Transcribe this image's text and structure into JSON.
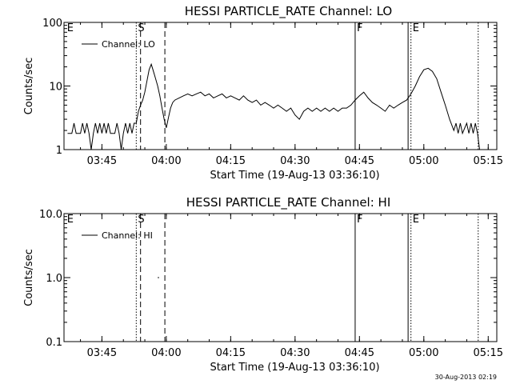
{
  "chart_data": [
    {
      "type": "line",
      "title": "HESSI PARTICLE_RATE Channel: LO",
      "xlabel": "Start Time (19-Aug-13 03:36:10)",
      "ylabel": "Counts/sec",
      "yscale": "log",
      "ylim": [
        1,
        100
      ],
      "xlim": [
        "03:36:10",
        "05:17:00"
      ],
      "x_ticks": [
        "03:45",
        "04:00",
        "04:15",
        "04:30",
        "04:45",
        "05:00",
        "05:15"
      ],
      "y_ticks": [
        "1",
        "10",
        "100"
      ],
      "legend": "top-left",
      "series": [
        {
          "name": "Channel: LO",
          "points": [
            [
              "03:37:00",
              1.8
            ],
            [
              "03:38:00",
              1.8
            ],
            [
              "03:38:30",
              2.6
            ],
            [
              "03:39:00",
              1.8
            ],
            [
              "03:40:00",
              1.8
            ],
            [
              "03:40:30",
              2.6
            ],
            [
              "03:41:00",
              1.8
            ],
            [
              "03:41:30",
              2.6
            ],
            [
              "03:42:00",
              1.8
            ],
            [
              "03:42:30",
              1.0
            ],
            [
              "03:43:00",
              1.8
            ],
            [
              "03:43:30",
              2.6
            ],
            [
              "03:44:00",
              1.8
            ],
            [
              "03:44:30",
              2.6
            ],
            [
              "03:45:00",
              1.8
            ],
            [
              "03:45:30",
              2.6
            ],
            [
              "03:46:00",
              1.8
            ],
            [
              "03:46:30",
              2.6
            ],
            [
              "03:47:00",
              1.8
            ],
            [
              "03:48:00",
              1.8
            ],
            [
              "03:48:30",
              2.6
            ],
            [
              "03:49:00",
              1.8
            ],
            [
              "03:49:30",
              1.0
            ],
            [
              "03:50:00",
              1.8
            ],
            [
              "03:50:30",
              2.6
            ],
            [
              "03:51:00",
              1.8
            ],
            [
              "03:51:30",
              2.6
            ],
            [
              "03:52:00",
              1.8
            ],
            [
              "03:52:30",
              2.6
            ],
            [
              "03:53:00",
              2.6
            ],
            [
              "03:53:30",
              4.0
            ],
            [
              "03:54:00",
              5.0
            ],
            [
              "03:54:30",
              6.0
            ],
            [
              "03:55:00",
              8.0
            ],
            [
              "03:55:30",
              12.0
            ],
            [
              "03:56:00",
              18.0
            ],
            [
              "03:56:30",
              22.0
            ],
            [
              "03:57:00",
              17.0
            ],
            [
              "03:57:30",
              13.0
            ],
            [
              "03:58:00",
              10.0
            ],
            [
              "03:58:30",
              7.0
            ],
            [
              "03:59:00",
              4.5
            ],
            [
              "03:59:30",
              3.0
            ],
            [
              "04:00:00",
              2.2
            ],
            [
              "04:00:30",
              3.2
            ],
            [
              "04:01:00",
              4.5
            ],
            [
              "04:01:30",
              5.5
            ],
            [
              "04:02:00",
              6.0
            ],
            [
              "04:03:00",
              6.5
            ],
            [
              "04:04:00",
              7.0
            ],
            [
              "04:05:00",
              7.5
            ],
            [
              "04:06:00",
              7.0
            ],
            [
              "04:07:00",
              7.5
            ],
            [
              "04:08:00",
              8.0
            ],
            [
              "04:09:00",
              7.0
            ],
            [
              "04:10:00",
              7.5
            ],
            [
              "04:11:00",
              6.5
            ],
            [
              "04:12:00",
              7.0
            ],
            [
              "04:13:00",
              7.5
            ],
            [
              "04:14:00",
              6.5
            ],
            [
              "04:15:00",
              7.0
            ],
            [
              "04:16:00",
              6.5
            ],
            [
              "04:17:00",
              6.0
            ],
            [
              "04:18:00",
              7.0
            ],
            [
              "04:19:00",
              6.0
            ],
            [
              "04:20:00",
              5.5
            ],
            [
              "04:21:00",
              6.0
            ],
            [
              "04:22:00",
              5.0
            ],
            [
              "04:23:00",
              5.5
            ],
            [
              "04:24:00",
              5.0
            ],
            [
              "04:25:00",
              4.5
            ],
            [
              "04:26:00",
              5.0
            ],
            [
              "04:27:00",
              4.5
            ],
            [
              "04:28:00",
              4.0
            ],
            [
              "04:29:00",
              4.5
            ],
            [
              "04:30:00",
              3.5
            ],
            [
              "04:31:00",
              3.0
            ],
            [
              "04:32:00",
              4.0
            ],
            [
              "04:33:00",
              4.5
            ],
            [
              "04:34:00",
              4.0
            ],
            [
              "04:35:00",
              4.5
            ],
            [
              "04:36:00",
              4.0
            ],
            [
              "04:37:00",
              4.5
            ],
            [
              "04:38:00",
              4.0
            ],
            [
              "04:39:00",
              4.5
            ],
            [
              "04:40:00",
              4.0
            ],
            [
              "04:41:00",
              4.5
            ],
            [
              "04:42:00",
              4.5
            ],
            [
              "04:43:00",
              5.0
            ],
            [
              "04:44:00",
              6.0
            ],
            [
              "04:45:00",
              7.0
            ],
            [
              "04:46:00",
              8.0
            ],
            [
              "04:47:00",
              6.5
            ],
            [
              "04:48:00",
              5.5
            ],
            [
              "04:49:00",
              5.0
            ],
            [
              "04:50:00",
              4.5
            ],
            [
              "04:51:00",
              4.0
            ],
            [
              "04:52:00",
              5.0
            ],
            [
              "04:53:00",
              4.5
            ],
            [
              "04:54:00",
              5.0
            ],
            [
              "04:55:00",
              5.5
            ],
            [
              "04:56:00",
              6.0
            ],
            [
              "04:57:00",
              7.5
            ],
            [
              "04:58:00",
              10.0
            ],
            [
              "04:59:00",
              14.0
            ],
            [
              "05:00:00",
              18.0
            ],
            [
              "05:01:00",
              19.0
            ],
            [
              "05:02:00",
              17.0
            ],
            [
              "05:03:00",
              13.0
            ],
            [
              "05:04:00",
              8.0
            ],
            [
              "05:05:00",
              5.0
            ],
            [
              "05:06:00",
              3.0
            ],
            [
              "05:07:00",
              2.0
            ],
            [
              "05:07:30",
              2.6
            ],
            [
              "05:08:00",
              1.8
            ],
            [
              "05:08:30",
              2.6
            ],
            [
              "05:09:00",
              1.8
            ],
            [
              "05:10:00",
              2.6
            ],
            [
              "05:10:30",
              1.8
            ],
            [
              "05:11:00",
              2.6
            ],
            [
              "05:11:30",
              1.8
            ],
            [
              "05:12:00",
              2.6
            ],
            [
              "05:12:30",
              1.8
            ],
            [
              "05:13:00",
              1.0
            ]
          ]
        }
      ],
      "markers": [
        {
          "label": "E",
          "time": "03:36:30",
          "style": "none"
        },
        {
          "label": "S",
          "time": "03:53:00",
          "style": "dotted"
        },
        {
          "label": "",
          "time": "03:54:00",
          "style": "dashed"
        },
        {
          "label": "",
          "time": "03:59:40",
          "style": "dashed"
        },
        {
          "label": "F",
          "time": "04:44:00",
          "style": "solid"
        },
        {
          "label": "",
          "time": "04:56:20",
          "style": "solid"
        },
        {
          "label": "E",
          "time": "04:57:00",
          "style": "dotted"
        },
        {
          "label": "",
          "time": "05:12:40",
          "style": "dotted"
        }
      ]
    },
    {
      "type": "line",
      "title": "HESSI PARTICLE_RATE Channel: HI",
      "xlabel": "Start Time (19-Aug-13 03:36:10)",
      "ylabel": "Counts/sec",
      "yscale": "log",
      "ylim": [
        0.1,
        10
      ],
      "xlim": [
        "03:36:10",
        "05:17:00"
      ],
      "x_ticks": [
        "03:45",
        "04:00",
        "04:15",
        "04:30",
        "04:45",
        "05:00",
        "05:15"
      ],
      "y_ticks": [
        "0.1",
        "1.0",
        "10.0"
      ],
      "legend": "top-left",
      "series": [
        {
          "name": "Channel: HI",
          "points": [
            [
              "03:58:00",
              1.0
            ],
            [
              "03:58:20",
              1.0
            ]
          ]
        }
      ],
      "markers": [
        {
          "label": "E",
          "time": "03:36:30",
          "style": "none"
        },
        {
          "label": "S",
          "time": "03:53:00",
          "style": "dotted"
        },
        {
          "label": "",
          "time": "03:54:00",
          "style": "dashed"
        },
        {
          "label": "",
          "time": "03:59:40",
          "style": "dashed"
        },
        {
          "label": "F",
          "time": "04:44:00",
          "style": "solid"
        },
        {
          "label": "",
          "time": "04:56:20",
          "style": "solid"
        },
        {
          "label": "E",
          "time": "04:57:00",
          "style": "dotted"
        },
        {
          "label": "",
          "time": "05:12:40",
          "style": "dotted"
        }
      ]
    }
  ],
  "footer": {
    "timestamp": "30-Aug-2013 02:19"
  }
}
